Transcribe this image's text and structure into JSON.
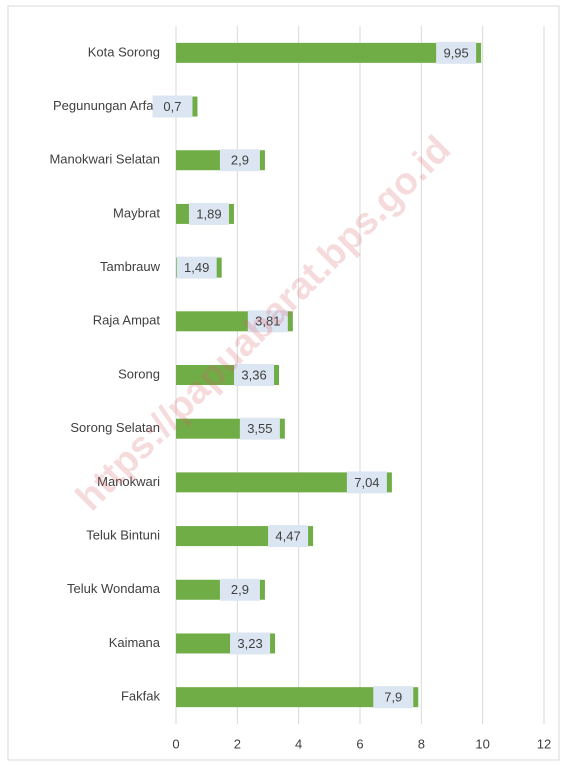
{
  "chart_data": {
    "type": "barh",
    "categories": [
      "Kota Sorong",
      "Pegunungan Arfak",
      "Manokwari Selatan",
      "Maybrat",
      "Tambrauw",
      "Raja Ampat",
      "Sorong",
      "Sorong Selatan",
      "Manokwari",
      "Teluk Bintuni",
      "Teluk Wondama",
      "Kaimana",
      "Fakfak"
    ],
    "values": [
      9.95,
      0.7,
      2.9,
      1.89,
      1.49,
      3.81,
      3.36,
      3.55,
      7.04,
      4.47,
      2.9,
      3.23,
      7.9
    ],
    "value_labels": [
      "9,95",
      "0,7",
      "2,9",
      "1,89",
      "1,49",
      "3,81",
      "3,36",
      "3,55",
      "7,04",
      "4,47",
      "2,9",
      "3,23",
      "7,9"
    ],
    "color": "#70ad47",
    "xlim": [
      0,
      12
    ],
    "xticks": [
      0,
      2,
      4,
      6,
      8,
      10,
      12
    ],
    "grid": true,
    "watermark": "https://papuabarat.bps.go.id"
  }
}
